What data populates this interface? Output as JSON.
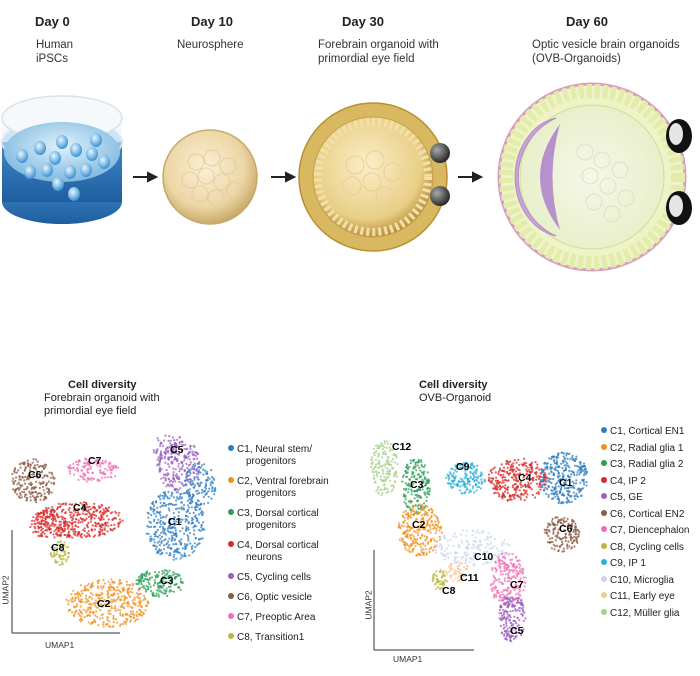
{
  "timeline": [
    {
      "day": "Day 0",
      "desc": [
        "Human",
        "iPSCs"
      ]
    },
    {
      "day": "Day 10",
      "desc": [
        "Neurosphere"
      ]
    },
    {
      "day": "Day 30",
      "desc": [
        "Forebrain organoid with",
        "primordial eye field"
      ]
    },
    {
      "day": "Day 60",
      "desc": [
        "Optic vesicle brain organoids",
        "(OVB-Organoids)"
      ]
    }
  ],
  "left_panel": {
    "title": "Cell diversity",
    "subtitle": [
      "Forebrain organoid with",
      "primordial eye field"
    ],
    "xaxis": "UMAP1",
    "yaxis": "UMAP2",
    "clusters": [
      {
        "id": "C1",
        "color": "#2e7fc2"
      },
      {
        "id": "C2",
        "color": "#f0921e"
      },
      {
        "id": "C3",
        "color": "#2e9e5a"
      },
      {
        "id": "C4",
        "color": "#d72a2a"
      },
      {
        "id": "C5",
        "color": "#9a5fc0"
      },
      {
        "id": "C6",
        "color": "#8a5a44"
      },
      {
        "id": "C7",
        "color": "#f06fb4"
      },
      {
        "id": "C8",
        "color": "#b8b83a"
      }
    ],
    "legend": [
      {
        "lines": [
          "C1, Neural stem/",
          "progenitors"
        ],
        "color": "#2e7fc2"
      },
      {
        "lines": [
          "C2, Ventral forebrain",
          "progenitors"
        ],
        "color": "#f0921e"
      },
      {
        "lines": [
          "C3, Dorsal cortical",
          "progenitors"
        ],
        "color": "#2e9e5a"
      },
      {
        "lines": [
          "C4, Dorsal cortical",
          "neurons"
        ],
        "color": "#d72a2a"
      },
      {
        "lines": [
          "C5, Cycling cells"
        ],
        "color": "#9a5fc0"
      },
      {
        "lines": [
          "C6, Optic vesicle"
        ],
        "color": "#8a5a44"
      },
      {
        "lines": [
          "C7, Preoptic Area"
        ],
        "color": "#f06fb4"
      },
      {
        "lines": [
          "C8, Transition1"
        ],
        "color": "#b8b83a"
      }
    ]
  },
  "right_panel": {
    "title": "Cell diversity",
    "subtitle": [
      "OVB-Organoid"
    ],
    "xaxis": "UMAP1",
    "yaxis": "UMAP2",
    "clusters": [
      {
        "id": "C1",
        "color": "#2e7fc2"
      },
      {
        "id": "C2",
        "color": "#f0921e"
      },
      {
        "id": "C3",
        "color": "#2e9e5a"
      },
      {
        "id": "C4",
        "color": "#d72a2a"
      },
      {
        "id": "C5",
        "color": "#9a5fc0"
      },
      {
        "id": "C6",
        "color": "#8a5a44"
      },
      {
        "id": "C7",
        "color": "#f06fb4"
      },
      {
        "id": "C8",
        "color": "#b8b83a"
      },
      {
        "id": "C9",
        "color": "#2eb0d8"
      },
      {
        "id": "C10",
        "color": "#c9d6ee"
      },
      {
        "id": "C11",
        "color": "#f6c89a"
      },
      {
        "id": "C12",
        "color": "#a8d08a"
      }
    ],
    "legend": [
      {
        "text": "C1, Cortical EN1",
        "color": "#2e7fc2"
      },
      {
        "text": "C2, Radial glia 1",
        "color": "#f0921e"
      },
      {
        "text": "C3, Radial glia 2",
        "color": "#2e9e5a"
      },
      {
        "text": "C4, IP 2",
        "color": "#d72a2a"
      },
      {
        "text": "C5, GE",
        "color": "#9a5fc0"
      },
      {
        "text": "C6, Cortical EN2",
        "color": "#8a5a44"
      },
      {
        "text": "C7, Diencephalon",
        "color": "#f06fb4"
      },
      {
        "text": "C8, Cycling cells",
        "color": "#b8b83a"
      },
      {
        "text": "C9, IP 1",
        "color": "#2eb0d8"
      },
      {
        "text": "C10, Microglia",
        "color": "#c9d6ee"
      },
      {
        "text": "C11, Early eye",
        "color": "#f6c89a"
      },
      {
        "text": "C12, Müller glia",
        "color": "#a8d08a"
      }
    ]
  }
}
